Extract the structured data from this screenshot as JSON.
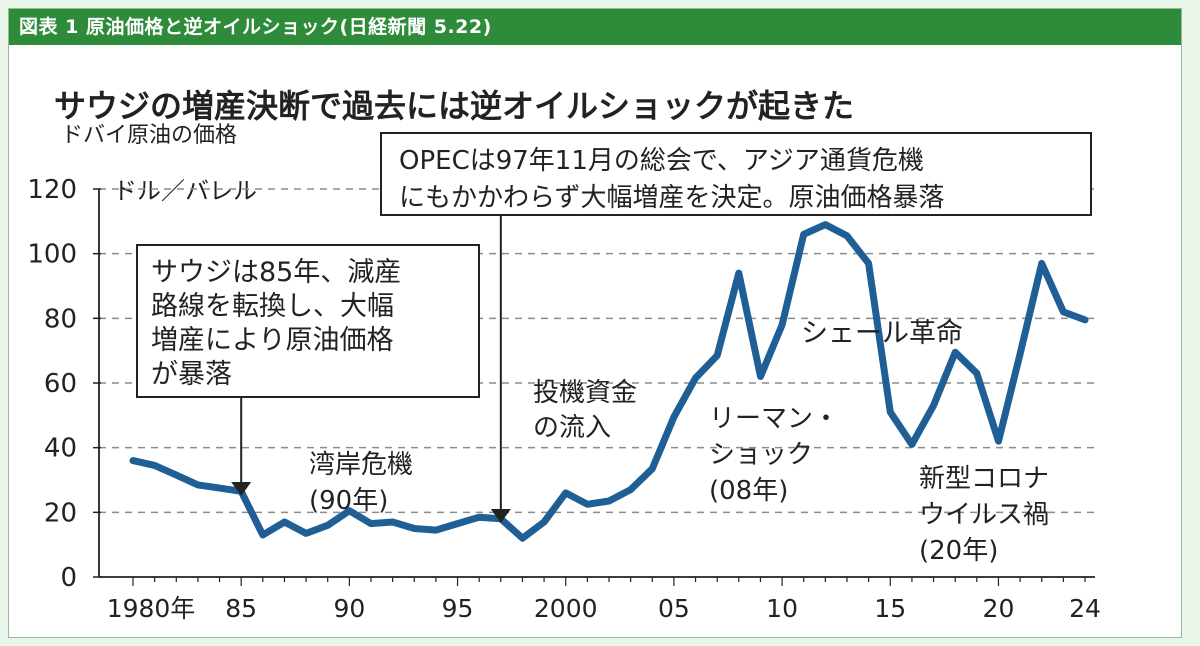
{
  "header": {
    "title": "図表 1 原油価格と逆オイルショック(日経新聞 5.22)"
  },
  "colors": {
    "header_bg": "#2e8b3a",
    "line": "#1f5f96",
    "text": "#222222"
  },
  "chart_data": {
    "type": "line",
    "title": "サウジの増産決断で過去には逆オイルショックが起きた",
    "subtitle": "ドバイ原油の価格",
    "unit_label": "ドル／バレル",
    "ylim": [
      0,
      120
    ],
    "yticks": [
      0,
      20,
      40,
      60,
      80,
      100,
      120
    ],
    "xlim": [
      1980,
      2024
    ],
    "xtick_values": [
      1980,
      1985,
      1990,
      1995,
      2000,
      2005,
      2010,
      2015,
      2020,
      2024
    ],
    "xtick_labels": [
      "1980年",
      "85",
      "90",
      "95",
      "2000",
      "05",
      "10",
      "15",
      "20",
      "24"
    ],
    "grid": "horizontal-dashed",
    "x": [
      1980,
      1981,
      1982,
      1983,
      1984,
      1985,
      1986,
      1987,
      1988,
      1989,
      1990,
      1991,
      1992,
      1993,
      1994,
      1995,
      1996,
      1997,
      1998,
      1999,
      2000,
      2001,
      2002,
      2003,
      2004,
      2005,
      2006,
      2007,
      2008,
      2009,
      2010,
      2011,
      2012,
      2013,
      2014,
      2015,
      2016,
      2017,
      2018,
      2019,
      2020,
      2021,
      2022,
      2023,
      2024
    ],
    "values": [
      36,
      34.5,
      31.5,
      28.5,
      27.5,
      26.5,
      13,
      17,
      13.5,
      16,
      20.5,
      16.5,
      17,
      15,
      14.5,
      16.5,
      18.5,
      18,
      12,
      17,
      26,
      22.5,
      23.5,
      27,
      33.5,
      49.5,
      61.5,
      68.5,
      94,
      62,
      78,
      106,
      109,
      105.5,
      97,
      51,
      41,
      53,
      69.5,
      63,
      42,
      69,
      97,
      82,
      79.5
    ],
    "annotations": [
      {
        "text": [
          "サウジは85年、減産",
          "路線を転換し、大幅",
          "増産により原油価格",
          "が暴落"
        ],
        "boxed": true,
        "arrow_year": 1985
      },
      {
        "text": [
          "OPECは97年11月の総会で、アジア通貨危機",
          "にもかかわらず大幅増産を決定。原油価格暴落"
        ],
        "boxed": true,
        "arrow_year": 1997
      },
      {
        "text": [
          "湾岸危機",
          "(90年)"
        ],
        "boxed": false
      },
      {
        "text": [
          "投機資金",
          "の流入"
        ],
        "boxed": false
      },
      {
        "text": [
          "リーマン・",
          "ショック",
          "(08年)"
        ],
        "boxed": false
      },
      {
        "text": [
          "シェール革命"
        ],
        "boxed": false
      },
      {
        "text": [
          "新型コロナ",
          "ウイルス禍",
          "(20年)"
        ],
        "boxed": false
      }
    ]
  }
}
